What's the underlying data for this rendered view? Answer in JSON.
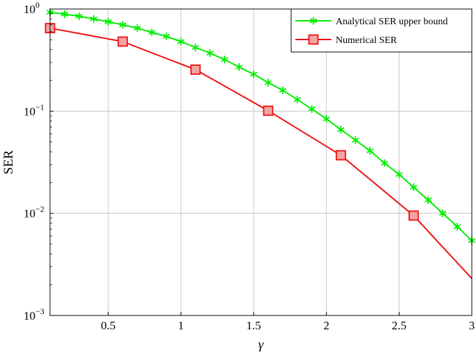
{
  "chart_data": {
    "type": "line",
    "xlabel": "γ",
    "ylabel": "SER",
    "xlim": [
      0.1,
      3.0
    ],
    "ylim": [
      0.001,
      1
    ],
    "y_scale": "log",
    "grid": true,
    "legend_position": "top-right",
    "x_ticks": [
      0.5,
      1,
      1.5,
      2,
      2.5,
      3
    ],
    "x_tick_labels": [
      "0.5",
      "1",
      "1.5",
      "2",
      "2.5",
      "3"
    ],
    "y_ticks": [
      {
        "value": 1,
        "base": "10",
        "exp": "0"
      },
      {
        "value": 0.1,
        "base": "10",
        "exp": "−1"
      },
      {
        "value": 0.01,
        "base": "10",
        "exp": "−2"
      },
      {
        "value": 0.001,
        "base": "10",
        "exp": "−3"
      }
    ],
    "series": [
      {
        "name": "Analytical SER upper bound",
        "color": "#00ee00",
        "marker": "star",
        "points": [
          [
            0.1,
            0.93
          ],
          [
            0.2,
            0.89
          ],
          [
            0.3,
            0.85
          ],
          [
            0.4,
            0.8
          ],
          [
            0.5,
            0.75
          ],
          [
            0.6,
            0.7
          ],
          [
            0.7,
            0.65
          ],
          [
            0.8,
            0.59
          ],
          [
            0.9,
            0.54
          ],
          [
            1.0,
            0.48
          ],
          [
            1.1,
            0.42
          ],
          [
            1.2,
            0.37
          ],
          [
            1.3,
            0.32
          ],
          [
            1.4,
            0.27
          ],
          [
            1.5,
            0.23
          ],
          [
            1.6,
            0.19
          ],
          [
            1.7,
            0.16
          ],
          [
            1.8,
            0.13
          ],
          [
            1.9,
            0.105
          ],
          [
            2.0,
            0.084
          ],
          [
            2.1,
            0.066
          ],
          [
            2.2,
            0.052
          ],
          [
            2.3,
            0.041
          ],
          [
            2.4,
            0.031
          ],
          [
            2.5,
            0.024
          ],
          [
            2.6,
            0.018
          ],
          [
            2.7,
            0.0135
          ],
          [
            2.8,
            0.01
          ],
          [
            2.9,
            0.0074
          ],
          [
            3.0,
            0.0054
          ]
        ]
      },
      {
        "name": "Numerical SER",
        "color": "#ee1111",
        "marker": "square",
        "points": [
          [
            0.1,
            0.65
          ],
          [
            0.6,
            0.48
          ],
          [
            1.1,
            0.255
          ],
          [
            1.6,
            0.101
          ],
          [
            2.1,
            0.037
          ],
          [
            2.6,
            0.0095
          ],
          [
            3.0,
            0.0023
          ]
        ],
        "marker_points": [
          [
            0.1,
            0.65
          ],
          [
            0.6,
            0.48
          ],
          [
            1.1,
            0.255
          ],
          [
            1.6,
            0.101
          ],
          [
            2.1,
            0.037
          ],
          [
            2.6,
            0.0095
          ]
        ]
      }
    ]
  }
}
